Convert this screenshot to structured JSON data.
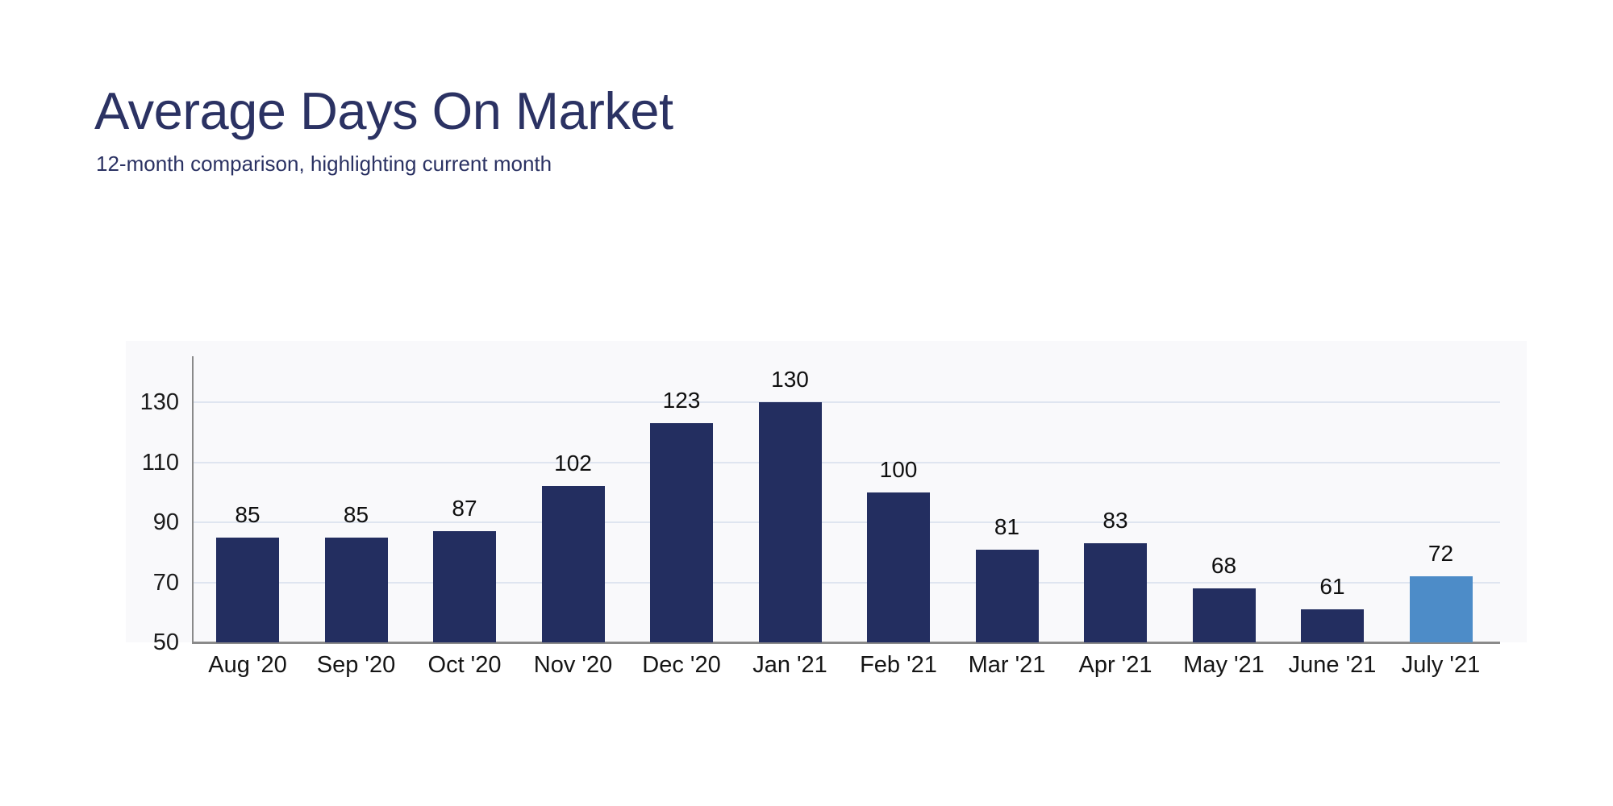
{
  "header": {
    "title": "Average Days On Market",
    "subtitle": "12-month comparison, highlighting current month",
    "title_color": "#2b3263"
  },
  "chart_data": {
    "type": "bar",
    "title": "Average Days On Market",
    "subtitle": "12-month comparison, highlighting current month",
    "categories": [
      "Aug '20",
      "Sep '20",
      "Oct '20",
      "Nov '20",
      "Dec '20",
      "Jan '21",
      "Feb '21",
      "Mar '21",
      "Apr '21",
      "May '21",
      "June '21",
      "July '21"
    ],
    "values": [
      85,
      85,
      87,
      102,
      123,
      130,
      100,
      81,
      83,
      68,
      61,
      72
    ],
    "highlight_index": 11,
    "highlight_meaning": "current month",
    "bar_color": "#232e60",
    "highlight_color": "#4d8cc8",
    "value_labels": true,
    "y_ticks": [
      50,
      70,
      90,
      110,
      130
    ],
    "ylim": [
      50,
      145
    ],
    "xlabel": "",
    "ylabel": "",
    "grid": true,
    "gridline_color": "#dfe5f0",
    "axis_color": "#8a8a8a",
    "legend": "none",
    "background": "#ffffff"
  }
}
